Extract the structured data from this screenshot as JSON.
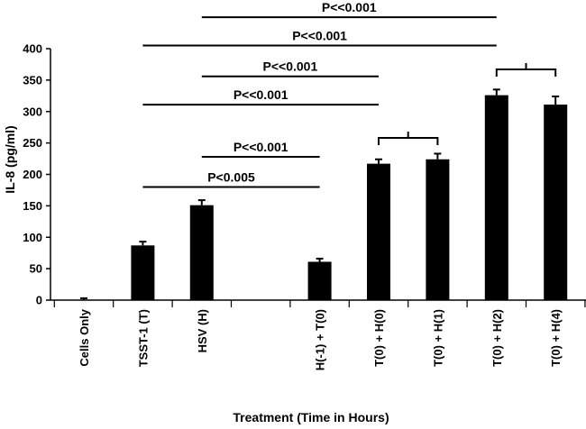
{
  "chart_data": {
    "type": "bar",
    "categories": [
      "Cells Only",
      "TSST-1 (T)",
      "HSV (H)",
      "",
      "H(-1) + T(0)",
      "T(0) + H(0)",
      "T(0) + H(1)",
      "T(0) + H(2)",
      "T(0) + H(4)"
    ],
    "values": [
      0,
      87,
      151,
      null,
      61,
      217,
      224,
      326,
      311
    ],
    "errors": [
      3,
      6,
      8,
      null,
      5,
      7,
      9,
      9,
      13
    ],
    "xlabel": "Treatment (Time in Hours)",
    "ylabel": "IL-8 (pg/ml)",
    "ylim": [
      0,
      400
    ],
    "yticks": [
      0,
      50,
      100,
      150,
      200,
      250,
      300,
      350,
      400
    ],
    "bar_color": "#000000",
    "significance": [
      {
        "label": "P<0.005",
        "from": 1,
        "to": 4,
        "y": 180
      },
      {
        "label": "P<<0.001",
        "from": 2,
        "to": 4,
        "y": 228
      },
      {
        "label": "P<<0.001",
        "from": 1,
        "to": 5,
        "y": 311
      },
      {
        "label": "P<<0.001",
        "from": 2,
        "to": 5,
        "y": 356
      },
      {
        "label": "P<<0.001",
        "from": 1,
        "to": 7,
        "y": 405
      },
      {
        "label": "P<<0.001",
        "from": 2,
        "to": 7,
        "y": 450
      }
    ],
    "brackets": [
      {
        "from": 5,
        "to": 6,
        "y": 258
      },
      {
        "from": 7,
        "to": 8,
        "y": 367
      }
    ]
  }
}
